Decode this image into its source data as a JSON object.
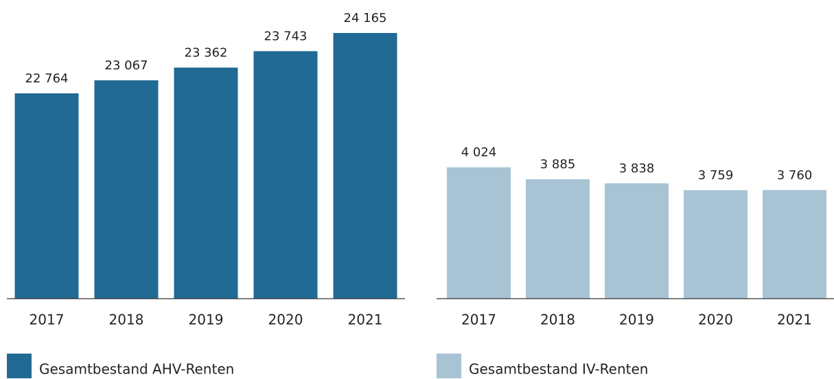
{
  "chart_data": [
    {
      "type": "bar",
      "categories": [
        "2017",
        "2018",
        "2019",
        "2020",
        "2021"
      ],
      "series": [
        {
          "name": "Gesamtbestand AHV-Renten",
          "color": "#206a94",
          "values": [
            22764,
            23067,
            23362,
            23743,
            24165
          ],
          "value_labels": [
            "22 764",
            "23 067",
            "23 362",
            "23 743",
            "24 165"
          ]
        }
      ],
      "ylim": [
        18000,
        24500
      ]
    },
    {
      "type": "bar",
      "categories": [
        "2017",
        "2018",
        "2019",
        "2020",
        "2021"
      ],
      "series": [
        {
          "name": "Gesamtbestand IV-Renten",
          "color": "#a8c3d4",
          "values": [
            4024,
            3885,
            3838,
            3759,
            3760
          ],
          "value_labels": [
            "4 024",
            "3 885",
            "3 838",
            "3 759",
            "3 760"
          ]
        }
      ],
      "ylim": [
        2500,
        5750
      ]
    }
  ]
}
